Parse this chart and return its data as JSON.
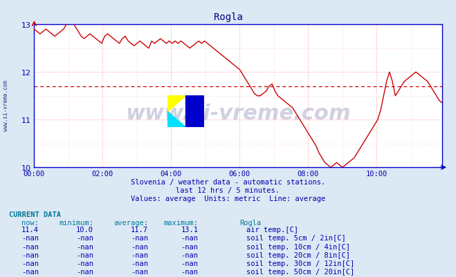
{
  "title": "Rogla",
  "title_color": "#000080",
  "bg_color": "#dce9f5",
  "plot_bg_color": "#ffffff",
  "grid_color_major": "#ff8888",
  "grid_color_minor": "#ffcccc",
  "axis_color": "#0000cc",
  "tick_color": "#0000aa",
  "line_color": "#cc0000",
  "average_line_y": 11.7,
  "average_line_color": "#cc0000",
  "xlim": [
    0,
    143
  ],
  "ylim": [
    10.0,
    13.0
  ],
  "yticks": [
    10,
    11,
    12,
    13
  ],
  "xtick_labels": [
    "00:00",
    "02:00",
    "04:00",
    "06:00",
    "08:00",
    "10:00"
  ],
  "xtick_positions": [
    0,
    24,
    48,
    72,
    96,
    120
  ],
  "subtitle1": "Slovenia / weather data - automatic stations.",
  "subtitle2": "last 12 hrs / 5 minutes.",
  "subtitle3": "Values: average  Units: metric  Line: average",
  "subtitle_color": "#0000aa",
  "watermark": "www.si-vreme.com",
  "watermark_color": "#000060",
  "watermark_alpha": 0.18,
  "ylabel_text": "www.si-vreme.com",
  "ylabel_color": "#000080",
  "current_data_label": "CURRENT DATA",
  "col_headers": [
    "now:",
    "minimum:",
    "average:",
    "maximum:",
    "Rogla"
  ],
  "rows": [
    {
      "now": "11.4",
      "min": "10.0",
      "avg": "11.7",
      "max": "13.1",
      "color": "#cc0000",
      "label": "air temp.[C]"
    },
    {
      "now": "-nan",
      "min": "-nan",
      "avg": "-nan",
      "max": "-nan",
      "color": "#c8a0a0",
      "label": "soil temp. 5cm / 2in[C]"
    },
    {
      "now": "-nan",
      "min": "-nan",
      "avg": "-nan",
      "max": "-nan",
      "color": "#c87832",
      "label": "soil temp. 10cm / 4in[C]"
    },
    {
      "now": "-nan",
      "min": "-nan",
      "avg": "-nan",
      "max": "-nan",
      "color": "#c89600",
      "label": "soil temp. 20cm / 8in[C]"
    },
    {
      "now": "-nan",
      "min": "-nan",
      "avg": "-nan",
      "max": "-nan",
      "color": "#788240",
      "label": "soil temp. 30cm / 12in[C]"
    },
    {
      "now": "-nan",
      "min": "-nan",
      "avg": "-nan",
      "max": "-nan",
      "color": "#7d4010",
      "label": "soil temp. 50cm / 20in[C]"
    }
  ],
  "temperature_data": [
    12.9,
    12.85,
    12.8,
    12.85,
    12.9,
    12.85,
    12.8,
    12.75,
    12.8,
    12.85,
    12.9,
    13.0,
    13.1,
    13.05,
    12.95,
    12.85,
    12.75,
    12.7,
    12.75,
    12.8,
    12.75,
    12.7,
    12.65,
    12.6,
    12.75,
    12.8,
    12.75,
    12.7,
    12.65,
    12.6,
    12.7,
    12.75,
    12.65,
    12.6,
    12.55,
    12.6,
    12.65,
    12.6,
    12.55,
    12.5,
    12.65,
    12.6,
    12.65,
    12.7,
    12.65,
    12.6,
    12.65,
    12.6,
    12.65,
    12.6,
    12.65,
    12.6,
    12.55,
    12.5,
    12.55,
    12.6,
    12.65,
    12.6,
    12.65,
    12.6,
    12.55,
    12.5,
    12.45,
    12.4,
    12.35,
    12.3,
    12.25,
    12.2,
    12.15,
    12.1,
    12.05,
    11.95,
    11.85,
    11.75,
    11.65,
    11.55,
    11.5,
    11.5,
    11.55,
    11.6,
    11.7,
    11.75,
    11.6,
    11.5,
    11.45,
    11.4,
    11.35,
    11.3,
    11.25,
    11.15,
    11.05,
    10.95,
    10.85,
    10.75,
    10.65,
    10.55,
    10.45,
    10.3,
    10.2,
    10.1,
    10.05,
    10.0,
    10.05,
    10.1,
    10.05,
    10.0,
    10.05,
    10.1,
    10.15,
    10.2,
    10.3,
    10.4,
    10.5,
    10.6,
    10.7,
    10.8,
    10.9,
    11.0,
    11.2,
    11.5,
    11.8,
    12.0,
    11.8,
    11.5,
    11.6,
    11.7,
    11.8,
    11.85,
    11.9,
    11.95,
    12.0,
    11.95,
    11.9,
    11.85,
    11.8,
    11.7,
    11.6,
    11.5,
    11.4,
    11.35
  ]
}
